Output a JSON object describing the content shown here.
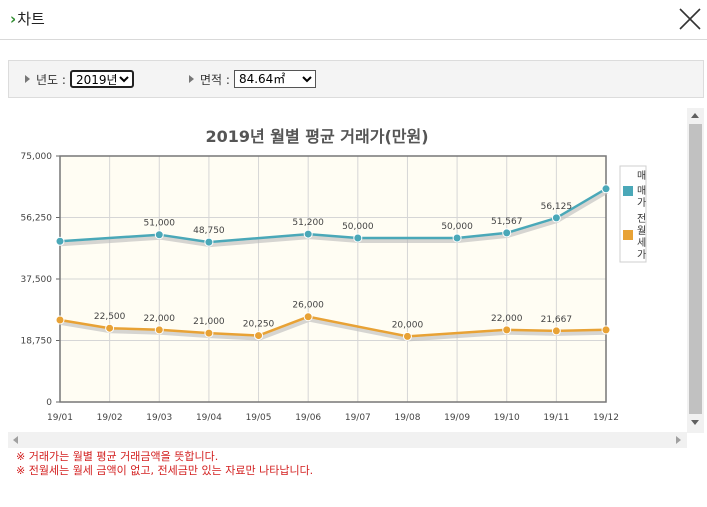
{
  "header": {
    "title_prefix": "›",
    "title": "차트",
    "close_label": "close"
  },
  "filters": {
    "year_label": "년도 :",
    "year_value": "2019년",
    "area_label": "면적 :",
    "area_value": "84.64㎡"
  },
  "chart_data": {
    "type": "line",
    "title": "2019년 월별 평균 거래가(만원)",
    "categories": [
      "19/01",
      "19/02",
      "19/03",
      "19/04",
      "19/05",
      "19/06",
      "19/07",
      "19/08",
      "19/09",
      "19/10",
      "19/11",
      "19/12"
    ],
    "ylim": [
      0,
      75000
    ],
    "yticks": [
      "0",
      "18,750",
      "37,500",
      "56,250",
      "75,000"
    ],
    "ytick_values": [
      0,
      18750,
      37500,
      56250,
      75000
    ],
    "series": [
      {
        "name": "매매가",
        "legend_header": "매",
        "legend_lines": [
          "매",
          "가"
        ],
        "color": "#4aa8b8",
        "values": [
          49000,
          null,
          51000,
          48750,
          null,
          51200,
          50000,
          null,
          50000,
          51567,
          56125,
          65000
        ],
        "labels": [
          "",
          "",
          "51,000",
          "48,750",
          "",
          "51,200",
          "50,000",
          "",
          "50,000",
          "51,567",
          "56,125",
          ""
        ]
      },
      {
        "name": "전월세",
        "legend_lines": [
          "전",
          "월",
          "세",
          "가"
        ],
        "color": "#e8a235",
        "values": [
          25000,
          22500,
          22000,
          21000,
          20250,
          26000,
          null,
          20000,
          null,
          22000,
          21667,
          22000
        ],
        "labels": [
          "",
          "22,500",
          "22,000",
          "21,000",
          "20,250",
          "26,000",
          "",
          "20,000",
          "",
          "22,000",
          "21,667",
          ""
        ]
      }
    ]
  },
  "notes": [
    "※ 거래가는 월별 평균 거래금액을 뜻합니다.",
    "※ 전월세는 월세 금액이 없고, 전세금만 있는 자료만 나타납니다."
  ]
}
